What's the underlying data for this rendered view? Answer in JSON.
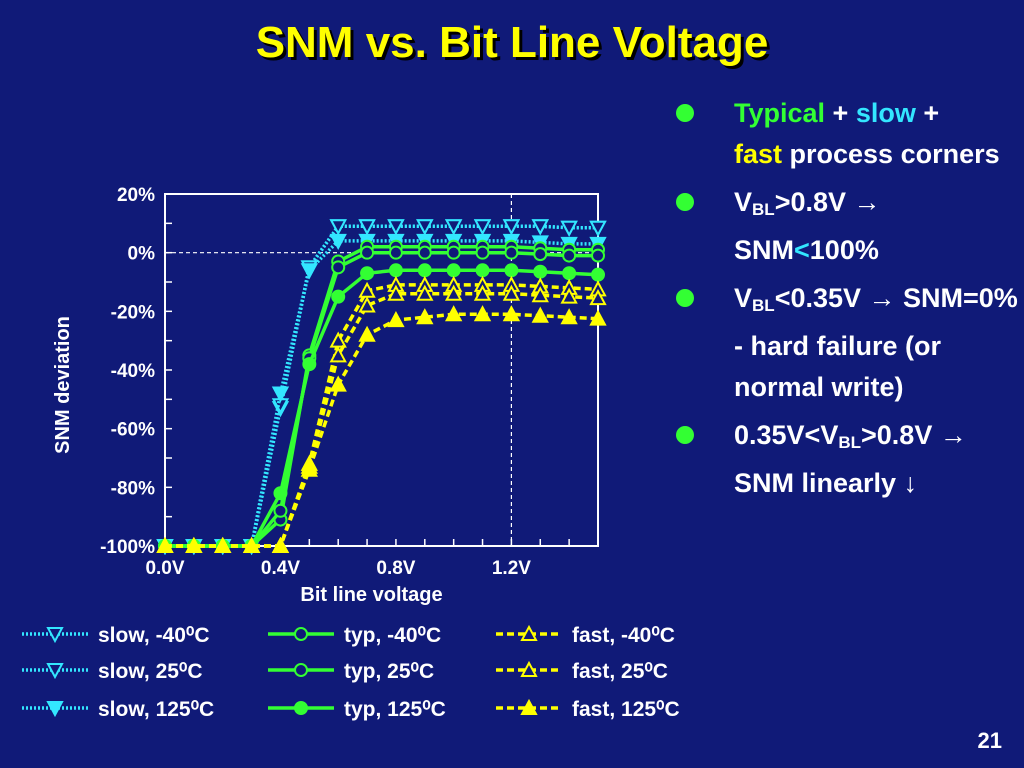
{
  "slide": {
    "title": "SNM vs. Bit Line Voltage",
    "page_number": "21"
  },
  "bullets": [
    {
      "parts": [
        "Typical",
        " + ",
        "slow",
        " +",
        "fast",
        " process corners"
      ]
    },
    {
      "parts": [
        "V",
        "BL",
        ">0.8V ",
        "→",
        " SNM",
        "<",
        "100%"
      ]
    },
    {
      "parts": [
        "V",
        "BL",
        "<0.35V ",
        "→",
        " SNM=0% - hard failure (or normal write)"
      ]
    },
    {
      "parts": [
        "0.35V<V",
        "BL",
        ">0.8V ",
        "→",
        " SNM linearly ",
        "↓"
      ]
    }
  ],
  "colors": {
    "slow": "#33e6ff",
    "typ": "#33ff33",
    "fast": "#ffff00",
    "bullet": "#33ff33",
    "title": "#ffff00",
    "background": "#101a78"
  },
  "chart_data": {
    "type": "line",
    "title": "",
    "xlabel": "Bit line voltage",
    "ylabel": "SNM deviation",
    "xlim": [
      0.0,
      1.5
    ],
    "ylim": [
      -100,
      20
    ],
    "x_tick_labels": [
      "0.0V",
      "0.4V",
      "0.8V",
      "1.2V"
    ],
    "x_ticks": [
      0.0,
      0.4,
      0.8,
      1.2
    ],
    "y_tick_labels": [
      "20%",
      "0%",
      "-20%",
      "-40%",
      "-60%",
      "-80%",
      "-100%"
    ],
    "y_ticks": [
      20,
      0,
      -20,
      -40,
      -60,
      -80,
      -100
    ],
    "reference_lines": {
      "y": 0,
      "x": 1.2
    },
    "x": [
      0.0,
      0.1,
      0.2,
      0.3,
      0.4,
      0.5,
      0.6,
      0.7,
      0.8,
      0.9,
      1.0,
      1.1,
      1.2,
      1.3,
      1.4,
      1.5
    ],
    "series": [
      {
        "name": "slow, -40⁰C",
        "color": "#33e6ff",
        "dash": "dotted",
        "marker": "triangle-down-open",
        "values": [
          -100,
          -100,
          -100,
          -100,
          -53,
          -5,
          9,
          9,
          9,
          9,
          9,
          9,
          9,
          9,
          8.5,
          8.5
        ]
      },
      {
        "name": "slow, 25⁰C",
        "color": "#33e6ff",
        "dash": "dotted",
        "marker": "triangle-down-open",
        "values": [
          -100,
          -100,
          -100,
          -100,
          -52,
          -5,
          9,
          9,
          9,
          9,
          9,
          9,
          9,
          9,
          8.5,
          8.5
        ]
      },
      {
        "name": "slow, 125⁰C",
        "color": "#33e6ff",
        "dash": "dotted",
        "marker": "triangle-down-filled",
        "values": [
          -100,
          -100,
          -100,
          -100,
          -48,
          -6,
          4,
          4,
          4,
          4,
          4,
          4,
          4,
          3.5,
          3,
          3
        ]
      },
      {
        "name": "typ, -40⁰C",
        "color": "#33ff33",
        "dash": "solid",
        "marker": "circle-open",
        "values": [
          -100,
          -100,
          -100,
          -100,
          -91,
          -35,
          -3,
          2,
          2,
          2,
          2,
          2,
          2,
          1.5,
          1,
          1
        ]
      },
      {
        "name": "typ, 25⁰C",
        "color": "#33ff33",
        "dash": "solid",
        "marker": "circle-open",
        "values": [
          -100,
          -100,
          -100,
          -100,
          -88,
          -36,
          -5,
          0,
          0,
          0,
          0,
          0,
          0,
          -0.5,
          -1,
          -1
        ]
      },
      {
        "name": "typ, 125⁰C",
        "color": "#33ff33",
        "dash": "solid",
        "marker": "circle-filled",
        "values": [
          -100,
          -100,
          -100,
          -100,
          -82,
          -38,
          -15,
          -7,
          -6,
          -6,
          -6,
          -6,
          -6,
          -6.5,
          -7,
          -7.5
        ]
      },
      {
        "name": "fast, -40⁰C",
        "color": "#ffff00",
        "dash": "dashed",
        "marker": "triangle-up-open",
        "values": [
          -100,
          -100,
          -100,
          -100,
          -100,
          -72,
          -30,
          -13,
          -11,
          -11,
          -11,
          -11,
          -11,
          -11.5,
          -12,
          -12.5
        ]
      },
      {
        "name": "fast, 25⁰C",
        "color": "#ffff00",
        "dash": "dashed",
        "marker": "triangle-up-open",
        "values": [
          -100,
          -100,
          -100,
          -100,
          -100,
          -73,
          -35,
          -18,
          -14,
          -14,
          -14,
          -14,
          -14,
          -14.5,
          -15,
          -15.5
        ]
      },
      {
        "name": "fast, 125⁰C",
        "color": "#ffff00",
        "dash": "dashed",
        "marker": "triangle-up-filled",
        "values": [
          -100,
          -100,
          -100,
          -100,
          -100,
          -74,
          -45,
          -28,
          -23,
          -22,
          -21,
          -21,
          -21,
          -21.5,
          -22,
          -22.5
        ]
      }
    ],
    "legend_placement": "bottom"
  }
}
